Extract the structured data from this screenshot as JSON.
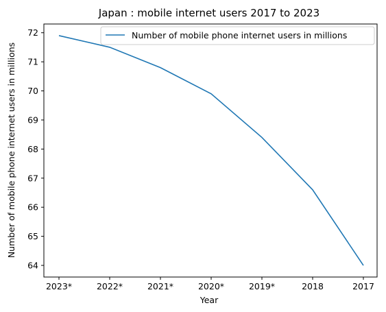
{
  "chart_data": {
    "type": "line",
    "title": "Japan : mobile internet users 2017 to 2023",
    "xlabel": "Year",
    "ylabel": "Number of mobile phone internet users in millions",
    "categories": [
      "2023*",
      "2022*",
      "2021*",
      "2020*",
      "2019*",
      "2018",
      "2017"
    ],
    "series": [
      {
        "name": "Number of mobile phone internet users in millions",
        "values": [
          71.9,
          71.5,
          70.8,
          69.9,
          68.4,
          66.6,
          64.0
        ],
        "color": "#1f77b4"
      }
    ],
    "ylim": [
      63.6,
      72.3
    ],
    "yticks": [
      64,
      65,
      66,
      67,
      68,
      69,
      70,
      71,
      72
    ],
    "grid": false,
    "legend": "upper right"
  }
}
